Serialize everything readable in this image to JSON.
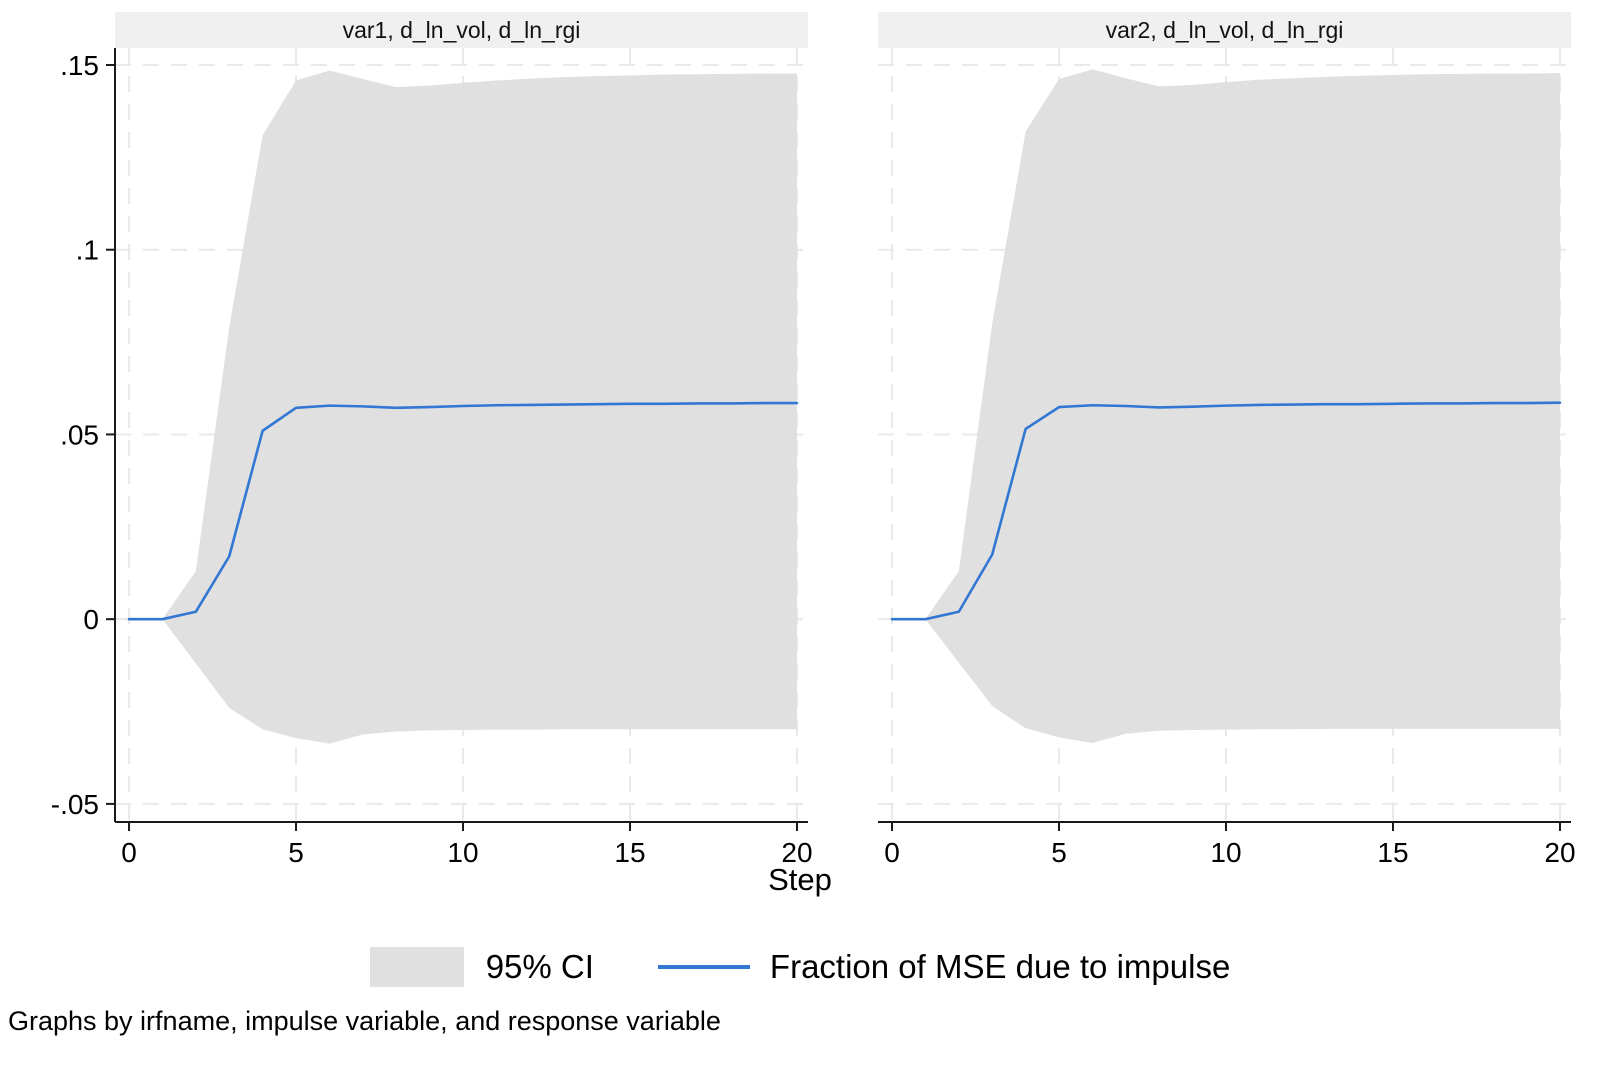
{
  "figure": {
    "xlabel": "Step",
    "footnote": "Graphs by irfname, impulse variable, and response variable"
  },
  "legend": {
    "ci_label": "95% CI",
    "line_label": "Fraction of MSE due to impulse"
  },
  "colors": {
    "band": "#e0e0e0",
    "line": "#3377d4",
    "title_bg": "#f0f0f0",
    "grid": "#e9e9e9",
    "axis": "#1a1a1a"
  },
  "chart_data": [
    {
      "type": "area",
      "title": "var1, d_ln_vol, d_ln_rgi",
      "xlabel": "Step",
      "xlim": [
        -0.42,
        20.33
      ],
      "ylim": [
        -0.0549,
        0.1546
      ],
      "grid": true,
      "legend_position": "bottom",
      "x": [
        0,
        1,
        2,
        3,
        4,
        5,
        6,
        7,
        8,
        9,
        10,
        11,
        12,
        13,
        14,
        15,
        16,
        17,
        18,
        19,
        20
      ],
      "xticks": [
        0,
        5,
        10,
        15,
        20
      ],
      "yticks": [
        {
          "label": ".15",
          "value": 0.15
        },
        {
          "label": ".1",
          "value": 0.1
        },
        {
          "label": ".05",
          "value": 0.05
        },
        {
          "label": "0",
          "value": 0
        },
        {
          "label": "-.05",
          "value": -0.05
        }
      ],
      "series": [
        {
          "name": "95% CI upper",
          "values": [
            0,
            0,
            0.013,
            0.079,
            0.131,
            0.1458,
            0.1485,
            0.1462,
            0.144,
            0.1444,
            0.1452,
            0.1458,
            0.1463,
            0.1467,
            0.147,
            0.1472,
            0.1474,
            0.1475,
            0.1476,
            0.1477,
            0.1477
          ]
        },
        {
          "name": "95% CI lower",
          "values": [
            0,
            0,
            -0.012,
            -0.024,
            -0.0298,
            -0.0322,
            -0.0337,
            -0.0312,
            -0.0304,
            -0.0301,
            -0.03,
            -0.0299,
            -0.0299,
            -0.0298,
            -0.0298,
            -0.0298,
            -0.0298,
            -0.0298,
            -0.0298,
            -0.0298,
            -0.0298
          ]
        },
        {
          "name": "Fraction of MSE due to impulse",
          "values": [
            0,
            0,
            0.002,
            0.017,
            0.051,
            0.0572,
            0.0578,
            0.0576,
            0.0572,
            0.0574,
            0.0577,
            0.0579,
            0.058,
            0.0581,
            0.0582,
            0.0583,
            0.0583,
            0.0584,
            0.0584,
            0.0585,
            0.0585
          ]
        }
      ]
    },
    {
      "type": "area",
      "title": "var2, d_ln_vol, d_ln_rgi",
      "xlabel": "Step",
      "xlim": [
        -0.42,
        20.33
      ],
      "ylim": [
        -0.0549,
        0.1546
      ],
      "grid": true,
      "legend_position": "bottom",
      "x": [
        0,
        1,
        2,
        3,
        4,
        5,
        6,
        7,
        8,
        9,
        10,
        11,
        12,
        13,
        14,
        15,
        16,
        17,
        18,
        19,
        20
      ],
      "xticks": [
        0,
        5,
        10,
        15,
        20
      ],
      "yticks": [
        {
          "label": ".15",
          "value": 0.15
        },
        {
          "label": ".1",
          "value": 0.1
        },
        {
          "label": ".05",
          "value": 0.05
        },
        {
          "label": "0",
          "value": 0
        },
        {
          "label": "-.05",
          "value": -0.05
        }
      ],
      "series": [
        {
          "name": "95% CI upper",
          "values": [
            0,
            0,
            0.013,
            0.08,
            0.132,
            0.1462,
            0.1488,
            0.1464,
            0.1442,
            0.1446,
            0.1454,
            0.146,
            0.1464,
            0.1468,
            0.1471,
            0.1473,
            0.1475,
            0.1476,
            0.1477,
            0.1477,
            0.1478
          ]
        },
        {
          "name": "95% CI lower",
          "values": [
            0,
            0,
            -0.0118,
            -0.0235,
            -0.0295,
            -0.032,
            -0.0335,
            -0.031,
            -0.0302,
            -0.03,
            -0.0299,
            -0.0298,
            -0.0298,
            -0.0297,
            -0.0297,
            -0.0297,
            -0.0297,
            -0.0297,
            -0.0297,
            -0.0297,
            -0.0297
          ]
        },
        {
          "name": "Fraction of MSE due to impulse",
          "values": [
            0,
            0,
            0.002,
            0.0175,
            0.0515,
            0.0574,
            0.0579,
            0.0577,
            0.0573,
            0.0575,
            0.0578,
            0.058,
            0.0581,
            0.0582,
            0.0582,
            0.0583,
            0.0584,
            0.0584,
            0.0585,
            0.0585,
            0.0586
          ]
        }
      ]
    }
  ]
}
